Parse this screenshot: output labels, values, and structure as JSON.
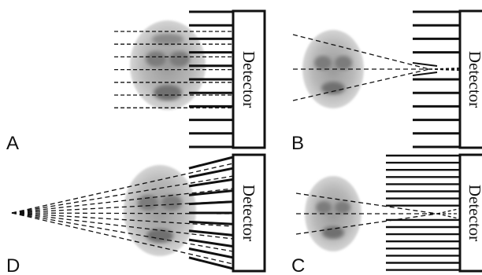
{
  "panels": [
    {
      "label": "A",
      "detector_label": "Detector"
    },
    {
      "label": "B",
      "detector_label": "Detector"
    },
    {
      "label": "D",
      "detector_label": "Detector"
    },
    {
      "label": "C",
      "detector_label": "Detector"
    }
  ],
  "colors": {
    "ink": "#111111",
    "brain_light": "#d9d9d9",
    "brain_dark": "#6f6f6f"
  }
}
